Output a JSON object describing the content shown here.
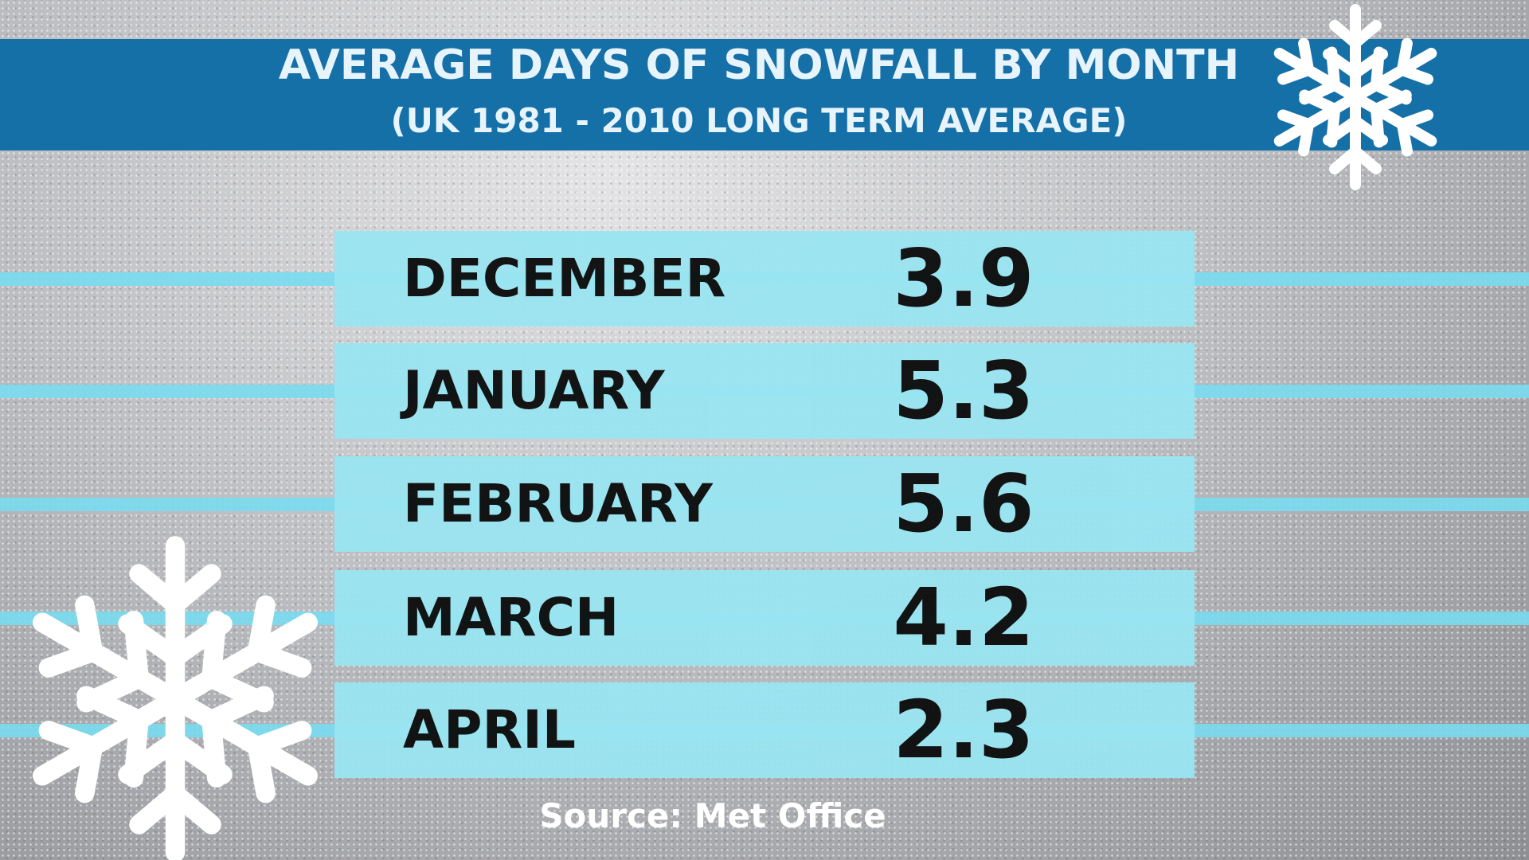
{
  "header": {
    "title": "AVERAGE DAYS OF SNOWFALL BY MONTH",
    "subtitle": "(UK 1981 - 2010 LONG TERM AVERAGE)"
  },
  "table": {
    "rows": [
      [
        "DECEMBER",
        3.9
      ],
      [
        "JANUARY",
        5.3
      ],
      [
        "FEBRUARY",
        5.6
      ],
      [
        "MARCH",
        4.2
      ],
      [
        "APRIL",
        2.3
      ]
    ]
  },
  "footer": {
    "source": "Source: Met Office"
  }
}
